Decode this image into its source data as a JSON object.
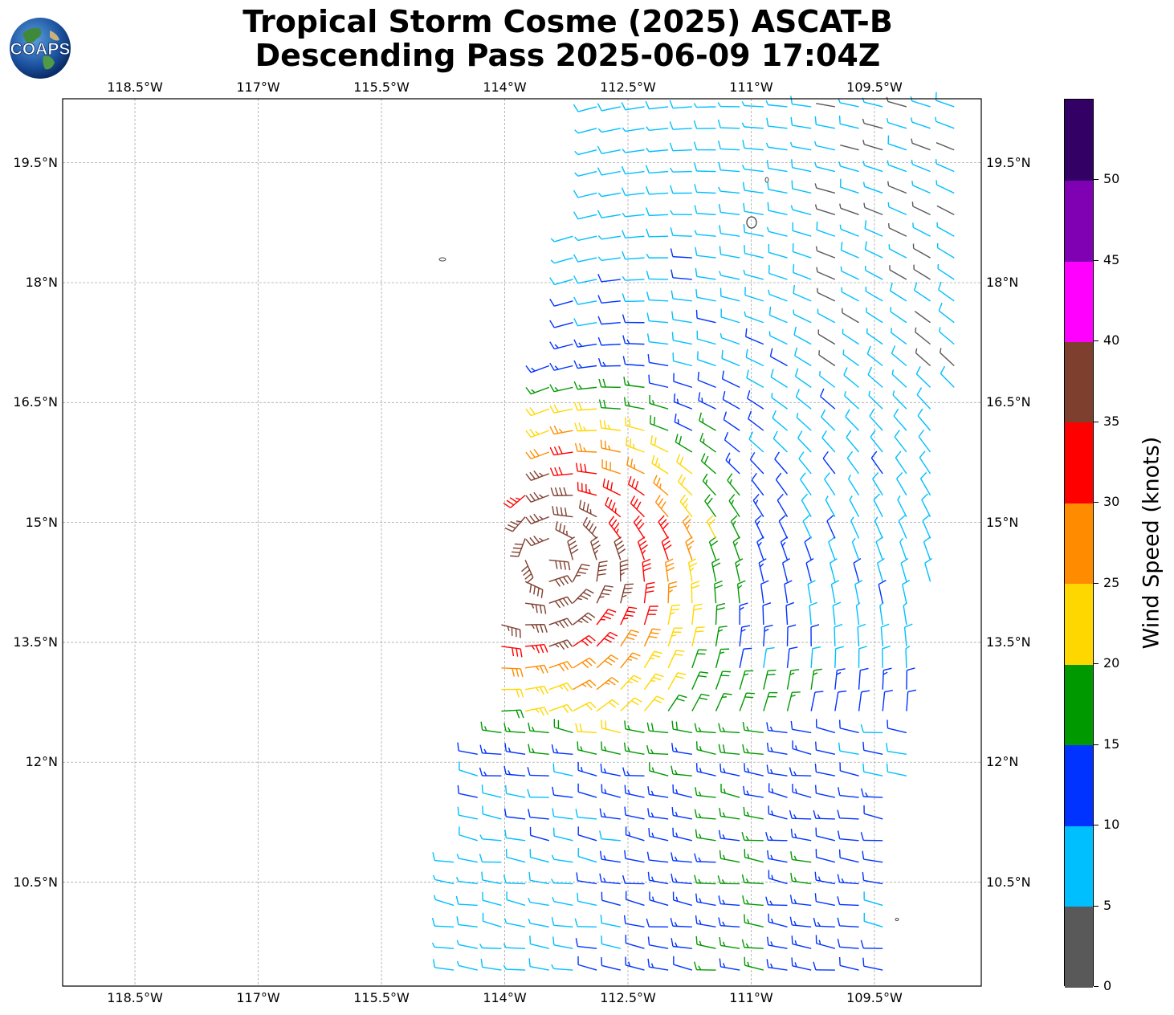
{
  "title": {
    "line1": "Tropical Storm Cosme (2025) ASCAT-B",
    "line2": "Descending Pass 2025-06-09 17:04Z"
  },
  "logo": {
    "text": "COAPS",
    "icon": "globe-icon"
  },
  "map": {
    "lon_ticks": [
      "118.5°W",
      "117°W",
      "115.5°W",
      "114°W",
      "112.5°W",
      "111°W",
      "109.5°W"
    ],
    "lat_ticks": [
      "19.5°N",
      "18°N",
      "16.5°N",
      "15°N",
      "13.5°N",
      "12°N",
      "10.5°N"
    ],
    "lon_values": [
      -118.5,
      -117,
      -115.5,
      -114,
      -112.5,
      -111,
      -109.5
    ],
    "lat_values": [
      19.5,
      18,
      16.5,
      15,
      13.5,
      12,
      10.5
    ],
    "lon_range": [
      -119.38,
      -108.2
    ],
    "lat_range": [
      9.2,
      20.3
    ],
    "gridlines": true,
    "storm_center": {
      "lon": -113.45,
      "lat": 14.55
    },
    "swath": "descending pass, eastern half of domain from about 114.9°W to 108.2°W"
  },
  "colorbar": {
    "label": "Wind Speed (knots)",
    "ticks": [
      "0",
      "5",
      "10",
      "15",
      "20",
      "25",
      "30",
      "35",
      "40",
      "45",
      "50"
    ],
    "bins": [
      {
        "from": 0,
        "to": 5,
        "color": "#595959"
      },
      {
        "from": 5,
        "to": 10,
        "color": "#00bfff"
      },
      {
        "from": 10,
        "to": 15,
        "color": "#0033ff"
      },
      {
        "from": 15,
        "to": 20,
        "color": "#009900"
      },
      {
        "from": 20,
        "to": 25,
        "color": "#ffd700"
      },
      {
        "from": 25,
        "to": 30,
        "color": "#ff8c00"
      },
      {
        "from": 30,
        "to": 35,
        "color": "#ff0000"
      },
      {
        "from": 35,
        "to": 40,
        "color": "#7f3f2f"
      },
      {
        "from": 40,
        "to": 45,
        "color": "#ff00ff"
      },
      {
        "from": 45,
        "to": 50,
        "color": "#8000b3"
      },
      {
        "from": 50,
        "to": 55,
        "color": "#330066"
      }
    ]
  }
}
